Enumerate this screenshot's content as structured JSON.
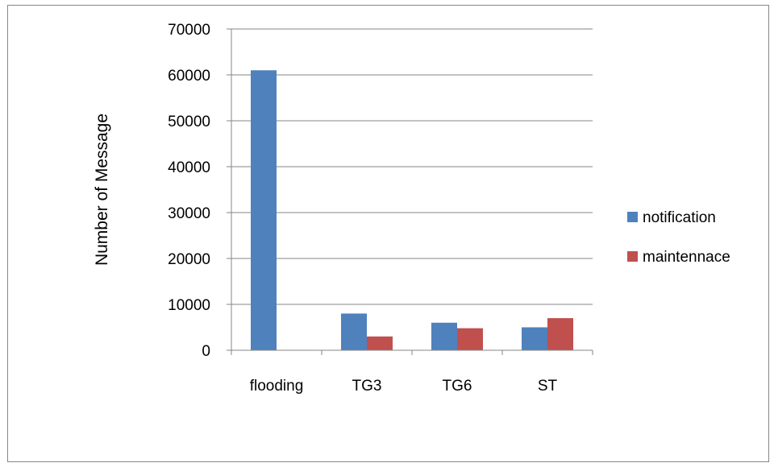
{
  "chart_data": {
    "type": "bar",
    "categories": [
      "flooding",
      "TG3",
      "TG6",
      "ST"
    ],
    "series": [
      {
        "name": "notification",
        "color": "#4F81BD",
        "values": [
          61000,
          8000,
          6000,
          5000
        ]
      },
      {
        "name": "maintennace",
        "color": "#C0504D",
        "values": [
          0,
          3000,
          4800,
          7000
        ]
      }
    ],
    "title": "",
    "xlabel": "",
    "ylabel": "Number of Message",
    "ylim": [
      0,
      70000
    ],
    "yticks": [
      "0",
      "10000",
      "20000",
      "30000",
      "40000",
      "50000",
      "60000",
      "70000"
    ],
    "grid": true,
    "legend": "right"
  }
}
